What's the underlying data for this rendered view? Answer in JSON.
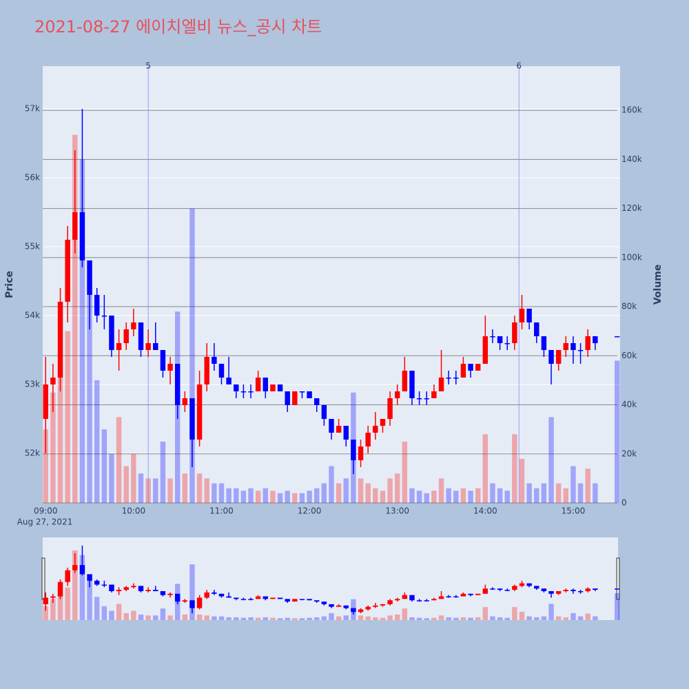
{
  "chart_data": {
    "type": "candlestick",
    "title": "2021-08-27 에이치엘비 뉴스_공시 차트",
    "y_label": "Price",
    "y2_label": "Volume",
    "x_date_label": "Aug 27, 2021",
    "increasing_color": "#ff0000",
    "decreasing_color": "#0000ff",
    "x": [
      "09:00",
      "09:05",
      "09:10",
      "09:15",
      "09:20",
      "09:25",
      "09:30",
      "09:35",
      "09:40",
      "09:45",
      "09:50",
      "09:55",
      "10:00",
      "10:05",
      "10:10",
      "10:15",
      "10:20",
      "10:25",
      "10:30",
      "10:35",
      "10:40",
      "10:45",
      "10:50",
      "10:55",
      "11:00",
      "11:05",
      "11:10",
      "11:15",
      "11:20",
      "11:25",
      "11:30",
      "11:35",
      "11:40",
      "11:45",
      "11:50",
      "11:55",
      "12:00",
      "12:05",
      "12:10",
      "12:15",
      "12:20",
      "12:25",
      "12:30",
      "12:35",
      "12:40",
      "12:45",
      "12:50",
      "12:55",
      "13:00",
      "13:05",
      "13:10",
      "13:15",
      "13:20",
      "13:25",
      "13:30",
      "13:35",
      "13:40",
      "13:45",
      "13:50",
      "13:55",
      "14:00",
      "14:05",
      "14:10",
      "14:15",
      "14:20",
      "14:25",
      "14:30",
      "14:35",
      "14:40",
      "14:45",
      "14:50",
      "14:55",
      "15:00",
      "15:05",
      "15:10",
      "15:15",
      "15:30"
    ],
    "open": [
      52500,
      53000,
      53100,
      54200,
      55100,
      55500,
      54800,
      54300,
      54000,
      54000,
      53500,
      53600,
      53800,
      53900,
      53500,
      53600,
      53500,
      53200,
      53300,
      52700,
      52800,
      52200,
      53000,
      53400,
      53300,
      53100,
      53000,
      52900,
      52900,
      52900,
      53100,
      52900,
      53000,
      52900,
      52700,
      52900,
      52900,
      52800,
      52700,
      52500,
      52300,
      52400,
      52200,
      51900,
      52100,
      52300,
      52400,
      52500,
      52800,
      52900,
      53200,
      52800,
      52800,
      52800,
      52900,
      53100,
      53100,
      53100,
      53300,
      53200,
      53300,
      53700,
      53700,
      53600,
      53600,
      53900,
      54100,
      53900,
      53700,
      53500,
      53300,
      53500,
      53600,
      53500,
      53500,
      53700,
      53700
    ],
    "high": [
      53400,
      53300,
      54400,
      55300,
      56400,
      57000,
      54800,
      54400,
      54300,
      54000,
      53800,
      53900,
      54100,
      53900,
      53800,
      53900,
      53500,
      53400,
      53300,
      52900,
      52800,
      53200,
      53600,
      53600,
      53300,
      53400,
      53000,
      53000,
      53000,
      53200,
      53100,
      53000,
      53000,
      52900,
      52900,
      52900,
      52900,
      52800,
      52700,
      52500,
      52500,
      52400,
      52200,
      52200,
      52400,
      52600,
      52500,
      52900,
      53000,
      53400,
      53200,
      52900,
      52900,
      53000,
      53500,
      53200,
      53200,
      53400,
      53300,
      53300,
      54000,
      53800,
      53700,
      53700,
      54000,
      54300,
      54100,
      53900,
      53700,
      53500,
      53500,
      53700,
      53700,
      53600,
      53800,
      53700,
      53700
    ],
    "low": [
      52000,
      52600,
      52900,
      53900,
      54900,
      54700,
      53800,
      53900,
      53800,
      53400,
      53200,
      53500,
      53700,
      53400,
      53400,
      53500,
      53100,
      53000,
      52500,
      52600,
      51800,
      52100,
      52900,
      53200,
      53000,
      53000,
      52800,
      52800,
      52800,
      52900,
      52800,
      52900,
      52900,
      52600,
      52700,
      52800,
      52800,
      52600,
      52400,
      52200,
      52300,
      52100,
      51700,
      51800,
      52000,
      52200,
      52300,
      52400,
      52700,
      52900,
      52700,
      52700,
      52700,
      52800,
      52900,
      53000,
      53000,
      53100,
      53100,
      53200,
      53300,
      53600,
      53500,
      53500,
      53500,
      53800,
      53800,
      53600,
      53400,
      53000,
      53200,
      53400,
      53300,
      53300,
      53400,
      53500,
      53700
    ],
    "close": [
      53000,
      53100,
      54200,
      55100,
      55500,
      54800,
      54300,
      54000,
      54000,
      53500,
      53600,
      53800,
      53900,
      53500,
      53600,
      53500,
      53200,
      53300,
      52700,
      52800,
      52200,
      53000,
      53400,
      53300,
      53100,
      53000,
      52900,
      52900,
      52900,
      53100,
      52900,
      53000,
      52900,
      52700,
      52900,
      52900,
      52800,
      52700,
      52500,
      52300,
      52400,
      52200,
      51900,
      52100,
      52300,
      52400,
      52500,
      52800,
      52900,
      53200,
      52800,
      52800,
      52800,
      52900,
      53100,
      53100,
      53100,
      53300,
      53200,
      53300,
      53700,
      53700,
      53600,
      53600,
      53900,
      54100,
      53900,
      53700,
      53500,
      53300,
      53500,
      53600,
      53500,
      53500,
      53700,
      53600,
      53700
    ],
    "volume": [
      30000,
      45000,
      55000,
      70000,
      150000,
      140000,
      90000,
      50000,
      30000,
      20000,
      35000,
      15000,
      20000,
      12000,
      10000,
      10000,
      25000,
      10000,
      78000,
      12000,
      120000,
      12000,
      10000,
      8000,
      8000,
      6000,
      6000,
      5000,
      6000,
      5000,
      6000,
      5000,
      4000,
      5000,
      4000,
      4000,
      5000,
      6000,
      8000,
      15000,
      8000,
      10000,
      45000,
      10000,
      8000,
      6000,
      5000,
      10000,
      12000,
      25000,
      6000,
      5000,
      4000,
      5000,
      10000,
      6000,
      5000,
      6000,
      5000,
      6000,
      28000,
      8000,
      6000,
      5000,
      28000,
      18000,
      8000,
      6000,
      8000,
      35000,
      8000,
      6000,
      15000,
      8000,
      14000,
      8000,
      58000
    ],
    "xlim": [
      "08:58",
      "15:32"
    ],
    "xticks": [
      "09:00",
      "10:00",
      "11:00",
      "12:00",
      "13:00",
      "14:00",
      "15:00"
    ],
    "ylim": [
      51280,
      57620
    ],
    "yticks": [
      {
        "value": 52000,
        "label": "52k"
      },
      {
        "value": 53000,
        "label": "53k"
      },
      {
        "value": 54000,
        "label": "54k"
      },
      {
        "value": 55000,
        "label": "55k"
      },
      {
        "value": 56000,
        "label": "56k"
      },
      {
        "value": 57000,
        "label": "57k"
      }
    ],
    "y2lim": [
      0,
      178000
    ],
    "y2ticks": [
      0,
      {
        "value": 20000,
        "label": "20k"
      },
      {
        "value": 40000,
        "label": "40k"
      },
      {
        "value": 60000,
        "label": "60k"
      },
      {
        "value": 80000,
        "label": "80k"
      },
      {
        "value": 100000,
        "label": "100k"
      },
      {
        "value": 120000,
        "label": "120k"
      },
      {
        "value": 140000,
        "label": "140k"
      },
      {
        "value": 160000,
        "label": "160k"
      }
    ],
    "annotations": [
      {
        "x": "10:10",
        "text": "5"
      },
      {
        "x": "14:23",
        "text": "6"
      }
    ],
    "grid": true
  }
}
